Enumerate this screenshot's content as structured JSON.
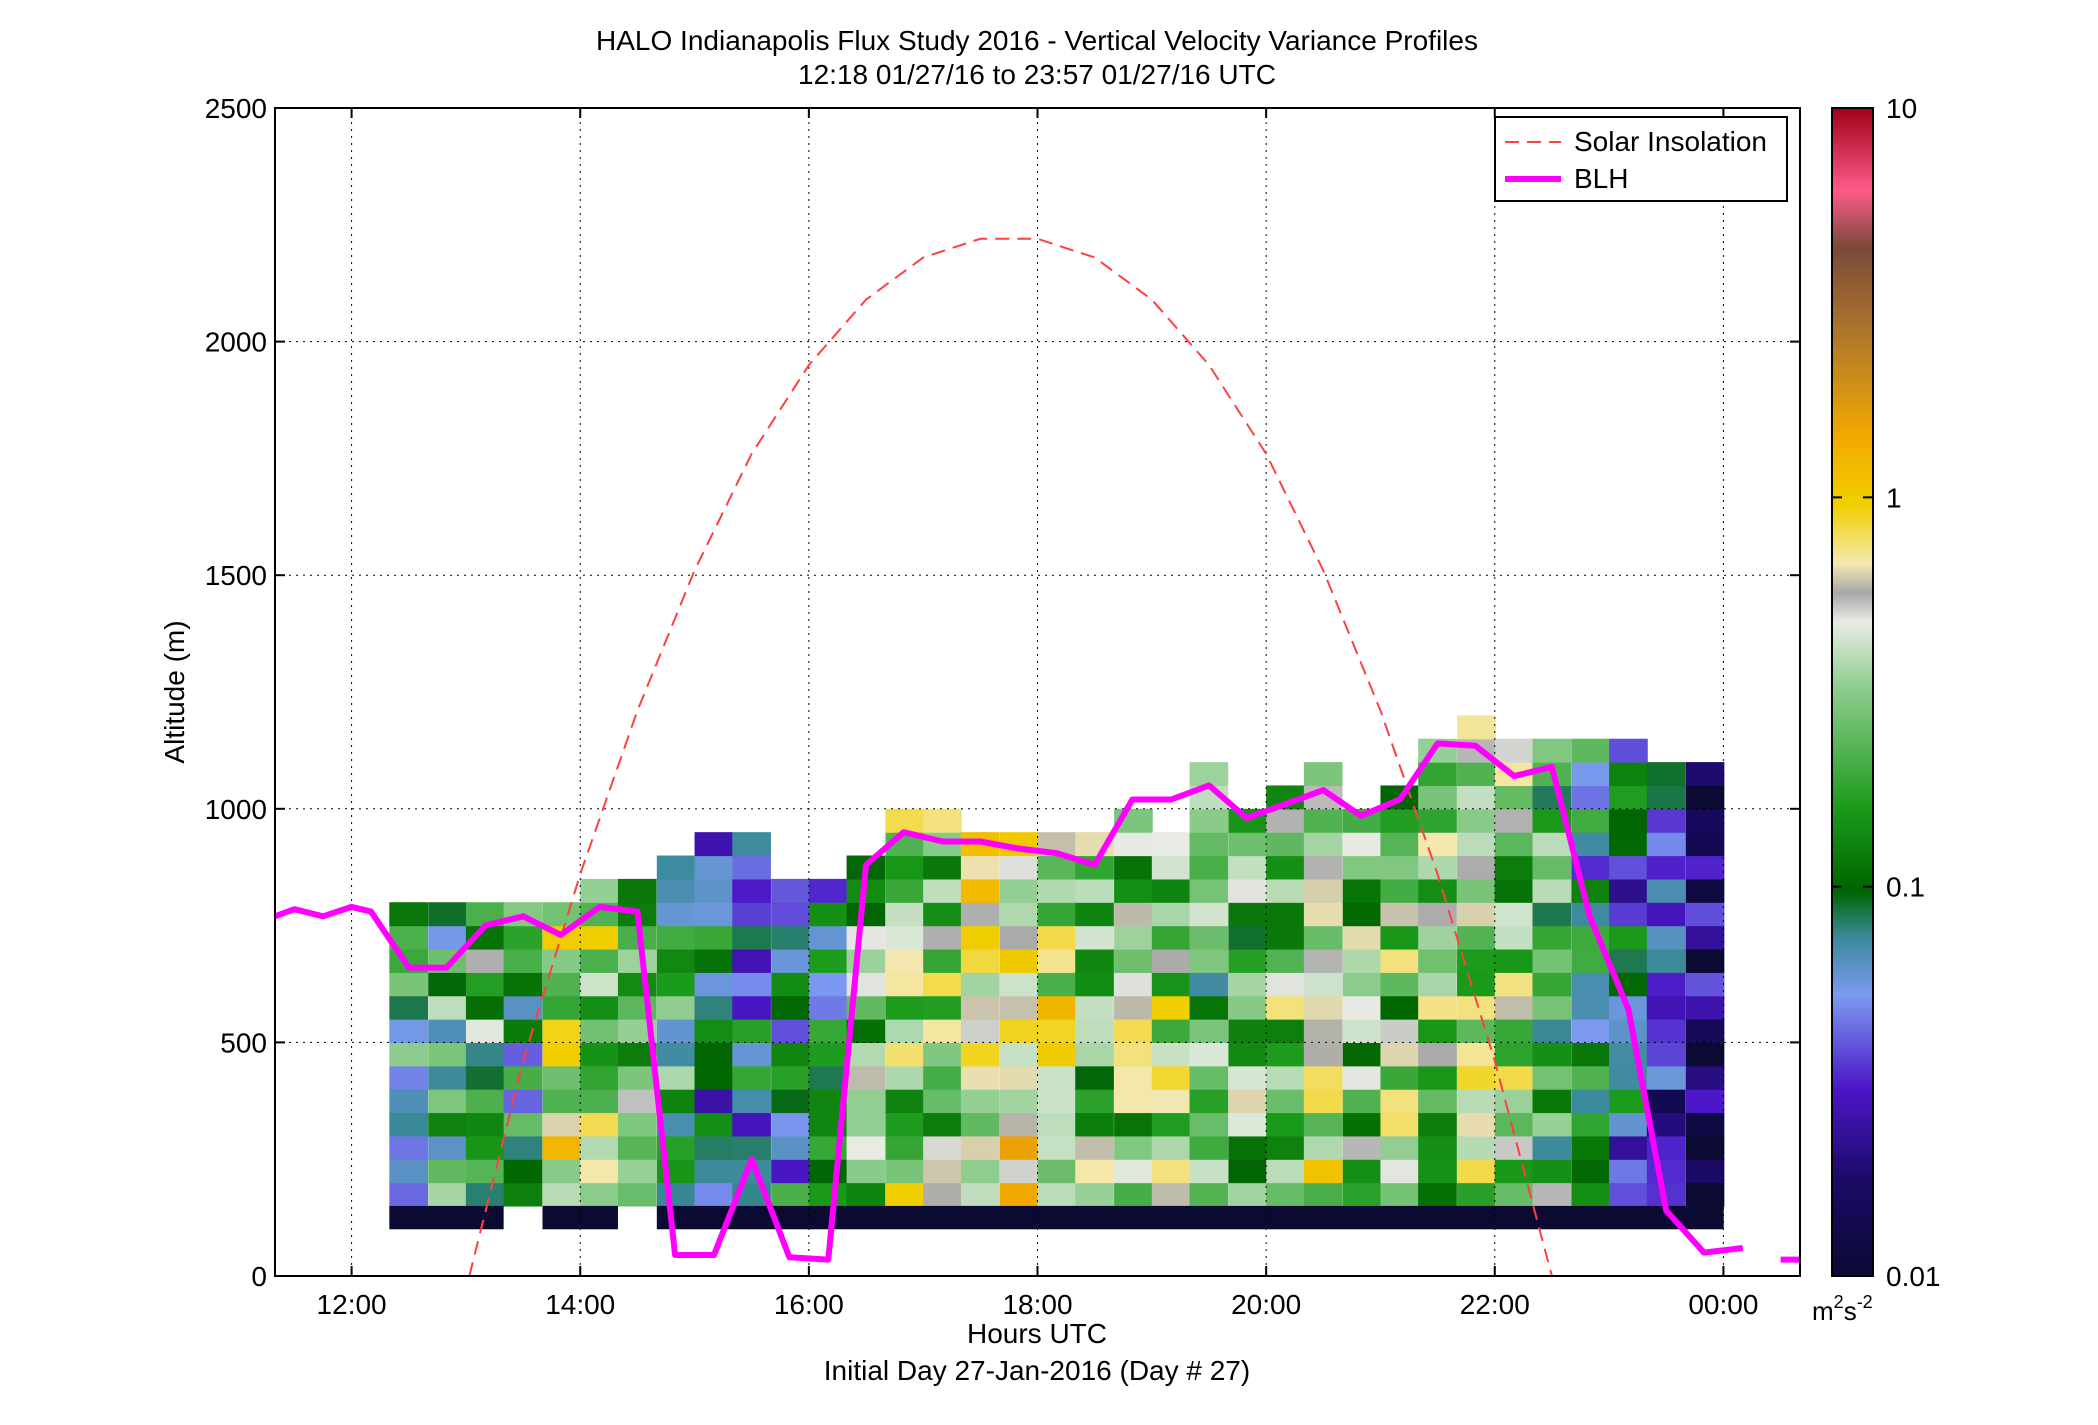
{
  "chart_data": {
    "type": "heatmap",
    "title": "HALO Indianapolis Flux Study 2016 - Vertical Velocity Variance Profiles",
    "subtitle": "12:18 01/27/16 to 23:57 01/27/16  UTC",
    "xlabel": "Hours UTC",
    "xlabel2": "Initial Day 27-Jan-2016 (Day # 27)",
    "ylabel": "Altitude (m)",
    "xlim_hours": [
      11.33,
      24.67
    ],
    "ylim": [
      0,
      2500
    ],
    "x_ticks": [
      {
        "hour": 12,
        "label": "12:00"
      },
      {
        "hour": 14,
        "label": "14:00"
      },
      {
        "hour": 16,
        "label": "16:00"
      },
      {
        "hour": 18,
        "label": "18:00"
      },
      {
        "hour": 20,
        "label": "20:00"
      },
      {
        "hour": 22,
        "label": "22:00"
      },
      {
        "hour": 24,
        "label": "00:00"
      }
    ],
    "y_ticks": [
      0,
      500,
      1000,
      1500,
      2000,
      2500
    ],
    "grid": true,
    "legend_position": "top-right",
    "legend": [
      {
        "name": "Solar Insolation",
        "color": "#ff4040",
        "style": "dashed"
      },
      {
        "name": "BLH",
        "color": "#ff00ff",
        "style": "solid"
      }
    ],
    "colorbar": {
      "scale": "log",
      "range": [
        0.01,
        10
      ],
      "tick_labels": [
        "0.01",
        "0.1",
        "1",
        "10"
      ],
      "unit_base": "m",
      "unit_exp1": "2",
      "unit_mid": "s",
      "unit_exp2": "-2"
    },
    "bin_width_hours": 0.333,
    "bin_height_m": 50,
    "base_altitude_m": 150,
    "column_start_hours": [
      12.33,
      12.67,
      13.0,
      13.33,
      13.67,
      14.0,
      14.33,
      14.67,
      15.0,
      15.33,
      15.67,
      16.0,
      16.33,
      16.67,
      17.0,
      17.33,
      17.67,
      18.0,
      18.33,
      18.67,
      19.0,
      19.33,
      19.67,
      20.0,
      20.33,
      20.67,
      21.0,
      21.33,
      21.67,
      22.0,
      22.33,
      22.67,
      23.0,
      23.33,
      23.67
    ],
    "column_tops_m": [
      800,
      800,
      800,
      800,
      800,
      850,
      850,
      900,
      950,
      950,
      850,
      850,
      900,
      1000,
      1000,
      950,
      950,
      950,
      950,
      1000,
      950,
      1100,
      1000,
      1050,
      1100,
      1000,
      1050,
      1150,
      1200,
      1150,
      1150,
      1150,
      1150,
      1100,
      1100
    ],
    "column_median_variance": [
      0.12,
      0.15,
      0.2,
      0.11,
      0.5,
      0.35,
      0.2,
      0.15,
      0.07,
      0.07,
      0.08,
      0.08,
      0.25,
      0.35,
      0.3,
      0.45,
      0.6,
      0.45,
      0.25,
      0.3,
      0.35,
      0.2,
      0.25,
      0.3,
      0.45,
      0.25,
      0.28,
      0.3,
      0.35,
      0.3,
      0.2,
      0.09,
      0.06,
      0.04,
      0.015
    ],
    "surface_row_variance": 0.01,
    "surface_row_gaps": [
      [
        13.33,
        13.67
      ],
      [
        14.33,
        14.67
      ]
    ],
    "blh": {
      "hours": [
        11.33,
        11.5,
        11.75,
        12.0,
        12.17,
        12.5,
        12.83,
        13.17,
        13.5,
        13.83,
        14.17,
        14.5,
        14.83,
        15.17,
        15.5,
        15.83,
        16.17,
        16.5,
        16.83,
        17.17,
        17.5,
        17.83,
        18.17,
        18.5,
        18.83,
        19.17,
        19.5,
        19.83,
        20.17,
        20.5,
        20.83,
        21.17,
        21.5,
        21.83,
        22.17,
        22.5,
        22.83,
        23.17,
        23.5,
        23.83,
        24.17
      ],
      "altitudes": [
        770,
        785,
        770,
        790,
        780,
        660,
        660,
        750,
        770,
        730,
        790,
        780,
        45,
        45,
        250,
        40,
        35,
        880,
        950,
        930,
        930,
        915,
        905,
        880,
        1020,
        1020,
        1050,
        980,
        1010,
        1040,
        985,
        1020,
        1140,
        1135,
        1070,
        1090,
        770,
        570,
        140,
        50,
        60
      ],
      "tail_hours": [
        24.5,
        24.67
      ],
      "tail_altitude": 35
    },
    "solar_insolation": {
      "hours": [
        13.03,
        13.5,
        14.0,
        14.5,
        15.0,
        15.5,
        16.0,
        16.5,
        17.0,
        17.5,
        18.0,
        18.5,
        19.0,
        19.5,
        20.0,
        20.5,
        21.0,
        21.5,
        22.0,
        22.5,
        22.97
      ],
      "altitudes": [
        0,
        460,
        860,
        1210,
        1510,
        1760,
        1950,
        2090,
        2180,
        2220,
        2220,
        2180,
        2090,
        1950,
        1760,
        1510,
        1210,
        860,
        460,
        0,
        -1
      ]
    }
  }
}
